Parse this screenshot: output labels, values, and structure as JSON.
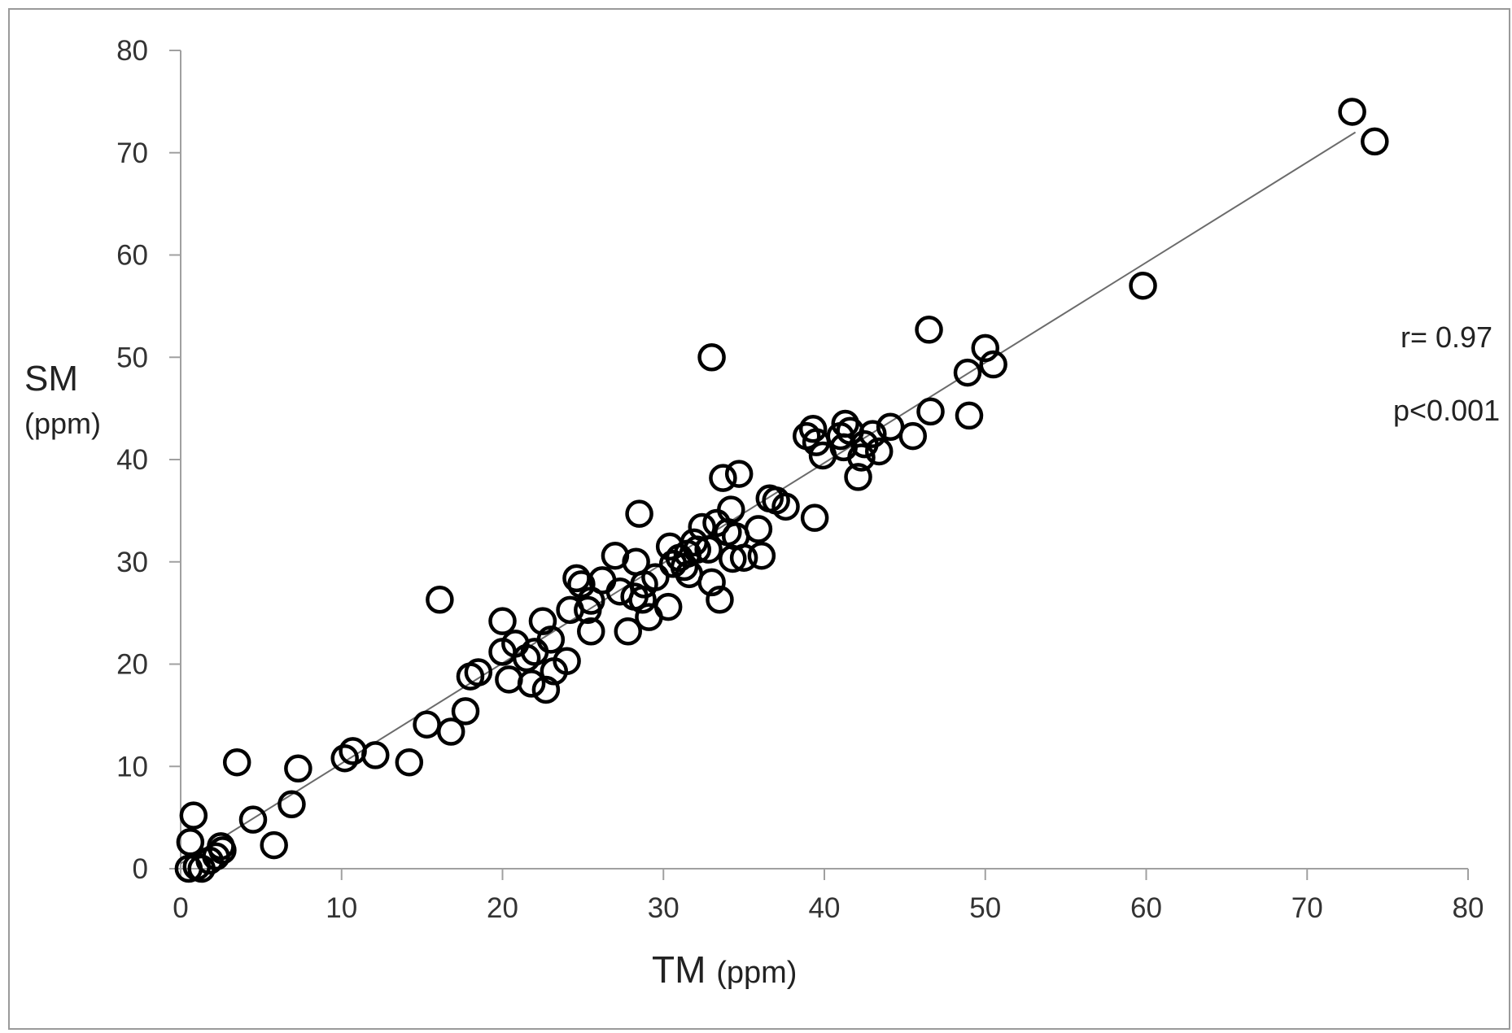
{
  "chart_data": {
    "type": "scatter",
    "x_axis_label": "TM",
    "x_axis_unit": "(ppm)",
    "y_axis_label": "SM",
    "y_axis_unit": "(ppm)",
    "xlim": [
      0,
      80
    ],
    "ylim": [
      0,
      80
    ],
    "x_ticks": [
      "0",
      "10",
      "20",
      "30",
      "40",
      "50",
      "60",
      "70",
      "80"
    ],
    "y_ticks": [
      "0",
      "10",
      "20",
      "30",
      "40",
      "50",
      "60",
      "70",
      "80"
    ],
    "grid": false,
    "legend": null,
    "annotations": {
      "r": "r= 0.97",
      "p": "p<0.001"
    },
    "trendline": {
      "x": [
        0,
        73
      ],
      "y": [
        0.5,
        72
      ]
    },
    "marker_color": "#000000",
    "points": [
      [
        0.5,
        0
      ],
      [
        1,
        0.2
      ],
      [
        1.3,
        0
      ],
      [
        0.6,
        2.6
      ],
      [
        0.8,
        5.2
      ],
      [
        1.8,
        0.8
      ],
      [
        2.2,
        1.2
      ],
      [
        2.5,
        2.2
      ],
      [
        2.6,
        1.8
      ],
      [
        3.5,
        10.4
      ],
      [
        4.5,
        4.8
      ],
      [
        5.8,
        2.3
      ],
      [
        6.9,
        6.3
      ],
      [
        7.3,
        9.8
      ],
      [
        10.2,
        10.8
      ],
      [
        10.7,
        11.5
      ],
      [
        12.1,
        11.1
      ],
      [
        14.2,
        10.4
      ],
      [
        15.3,
        14.1
      ],
      [
        16.1,
        26.3
      ],
      [
        16.8,
        13.4
      ],
      [
        17.7,
        15.4
      ],
      [
        18,
        18.8
      ],
      [
        18.5,
        19.2
      ],
      [
        20,
        24.2
      ],
      [
        20,
        21.2
      ],
      [
        20.4,
        18.5
      ],
      [
        20.8,
        22
      ],
      [
        21.5,
        20.6
      ],
      [
        21.8,
        18.1
      ],
      [
        22,
        21.2
      ],
      [
        22.5,
        24.2
      ],
      [
        22.7,
        17.5
      ],
      [
        23,
        22.4
      ],
      [
        23.2,
        19.3
      ],
      [
        24,
        20.3
      ],
      [
        24.2,
        25.3
      ],
      [
        24.6,
        28.4
      ],
      [
        24.9,
        27.8
      ],
      [
        25.3,
        25.3
      ],
      [
        25.5,
        23.2
      ],
      [
        25.5,
        26.2
      ],
      [
        26.2,
        28.2
      ],
      [
        27,
        30.6
      ],
      [
        27.3,
        27.1
      ],
      [
        27.8,
        23.2
      ],
      [
        28.2,
        26.6
      ],
      [
        28.3,
        30
      ],
      [
        28.5,
        34.7
      ],
      [
        28.7,
        26.3
      ],
      [
        28.8,
        27.8
      ],
      [
        29.1,
        24.6
      ],
      [
        29.5,
        28.5
      ],
      [
        30.3,
        25.6
      ],
      [
        30.4,
        31.5
      ],
      [
        30.6,
        29.8
      ],
      [
        31,
        30.4
      ],
      [
        31.3,
        29.5
      ],
      [
        31.5,
        30.8
      ],
      [
        31.6,
        28.8
      ],
      [
        31.9,
        31.9
      ],
      [
        32.1,
        31.2
      ],
      [
        32.4,
        33.4
      ],
      [
        32.8,
        31.2
      ],
      [
        33,
        28
      ],
      [
        33,
        50
      ],
      [
        33.3,
        33.8
      ],
      [
        33.5,
        26.3
      ],
      [
        33.7,
        38.2
      ],
      [
        34,
        32.9
      ],
      [
        34.2,
        35.1
      ],
      [
        34.3,
        30.3
      ],
      [
        34.5,
        32.5
      ],
      [
        34.7,
        38.6
      ],
      [
        35,
        30.4
      ],
      [
        35.9,
        33.2
      ],
      [
        36.1,
        30.6
      ],
      [
        36.6,
        36.2
      ],
      [
        37,
        36
      ],
      [
        37.6,
        35.4
      ],
      [
        38.9,
        42.3
      ],
      [
        39.3,
        43
      ],
      [
        39.4,
        34.3
      ],
      [
        39.5,
        41.7
      ],
      [
        39.9,
        40.4
      ],
      [
        41,
        42.3
      ],
      [
        41.2,
        41.2
      ],
      [
        41.3,
        43.5
      ],
      [
        41.6,
        42.8
      ],
      [
        42.1,
        38.3
      ],
      [
        42.3,
        40.2
      ],
      [
        42.5,
        41.5
      ],
      [
        43,
        42.5
      ],
      [
        43.4,
        40.8
      ],
      [
        44.1,
        43.2
      ],
      [
        45.5,
        42.3
      ],
      [
        46.5,
        52.7
      ],
      [
        46.6,
        44.7
      ],
      [
        48.9,
        48.5
      ],
      [
        49,
        44.3
      ],
      [
        50,
        50.9
      ],
      [
        50.5,
        49.3
      ],
      [
        59.8,
        57
      ],
      [
        72.8,
        74
      ],
      [
        74.2,
        71.1
      ]
    ]
  }
}
